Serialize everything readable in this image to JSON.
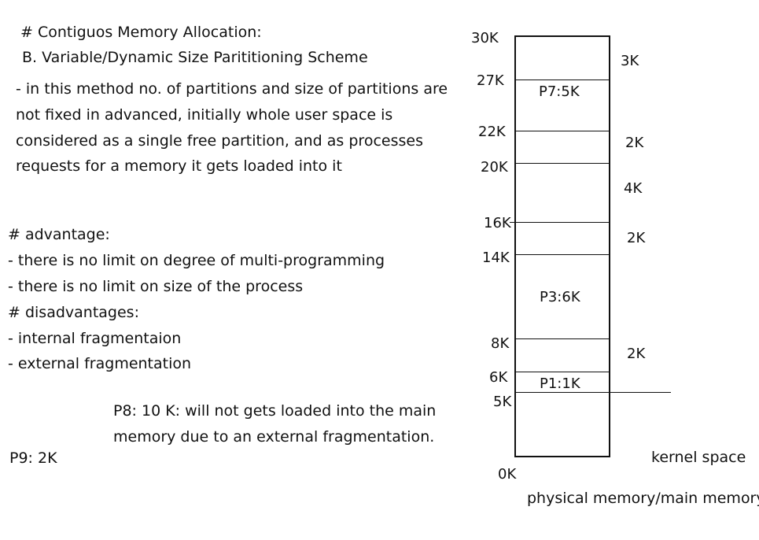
{
  "notes": {
    "title": "# Contiguos Memory Allocation:",
    "subtitle": "B. Variable/Dynamic Size Parititioning Scheme",
    "description_lines": [
      "- in this method no. of partitions and size of partitions  are",
      "not fixed in advanced, initially whole user space is",
      "considered as a single free partition, and as processes",
      "requests for a memory it gets loaded into it"
    ],
    "advantage_heading": "# advantage:",
    "advantages": [
      "- there is no limit on degree of multi-programming",
      "- there is no limit on size of the process"
    ],
    "disadvantage_heading": "# disadvantages:",
    "disadvantages": [
      "- internal fragmentaion",
      "- external fragmentation"
    ],
    "p8_note_lines": [
      "P8: 10 K: will not gets loaded into the main",
      "memory due to an external fragmentation."
    ],
    "p9_note": "P9: 2K"
  },
  "memory": {
    "addresses": [
      "30K",
      "27K",
      "22K",
      "20K",
      "16K",
      "14K",
      "8K",
      "6K",
      "5K",
      "0K"
    ],
    "partitions": [
      "P7:5K",
      "P3:6K",
      "P1:1K"
    ],
    "free_holes": [
      "3K",
      "2K",
      "4K",
      "2K",
      "2K"
    ],
    "kernel_label": "kernel space",
    "caption": "physical memory/main memory"
  }
}
